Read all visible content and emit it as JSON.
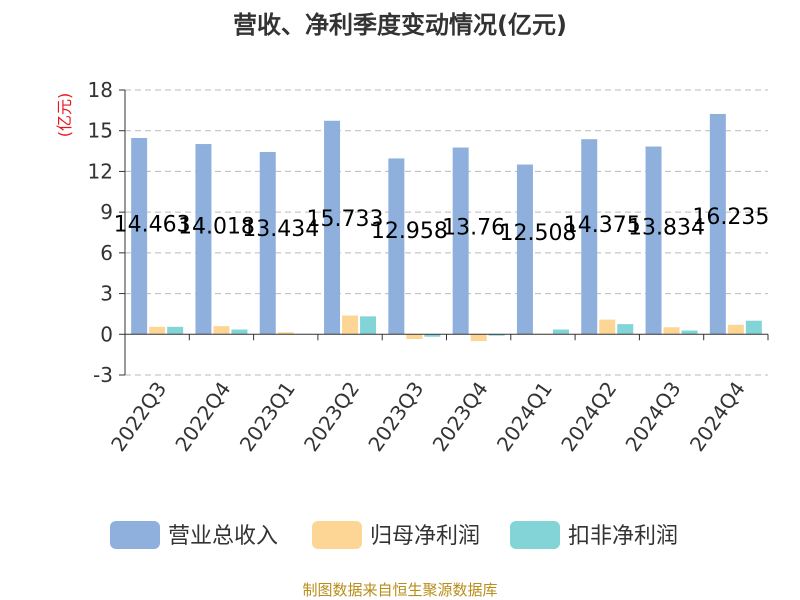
{
  "title": "营收、净利季度变动情况(亿元)",
  "source": "制图数据来自恒生聚源数据库",
  "colors": {
    "revenue": "#8fb0dd",
    "net_profit": "#fdd696",
    "deducted_net_profit": "#82d4d7",
    "ylabel": "#e8161c",
    "source": "#b88d1a"
  },
  "chart_data": {
    "type": "bar",
    "title": "营收、净利季度变动情况(亿元)",
    "ylabel": "(亿元)",
    "xlabel": "",
    "ylim": [
      -3,
      18
    ],
    "yticks": [
      -3,
      0,
      3,
      6,
      9,
      12,
      15,
      18
    ],
    "grid": true,
    "legend_position": "bottom",
    "categories": [
      "2022Q3",
      "2022Q4",
      "2023Q1",
      "2023Q2",
      "2023Q3",
      "2023Q4",
      "2024Q1",
      "2024Q2",
      "2024Q3",
      "2024Q4"
    ],
    "series": [
      {
        "name": "营业总收入",
        "values": [
          14.463,
          14.018,
          13.434,
          15.733,
          12.958,
          13.76,
          12.508,
          14.375,
          13.834,
          16.235
        ],
        "labels": [
          "14.463",
          "14.018",
          "13.434",
          "15.733",
          "12.958",
          "13.76",
          "12.508",
          "14.375",
          "13.834",
          "16.235"
        ]
      },
      {
        "name": "归母净利润",
        "values": [
          0.55,
          0.6,
          0.15,
          1.38,
          -0.35,
          -0.5,
          0.05,
          1.08,
          0.52,
          0.7
        ]
      },
      {
        "name": "扣非净利润",
        "values": [
          0.55,
          0.35,
          0.03,
          1.32,
          -0.18,
          -0.1,
          0.35,
          0.75,
          0.28,
          1.0
        ]
      }
    ]
  }
}
